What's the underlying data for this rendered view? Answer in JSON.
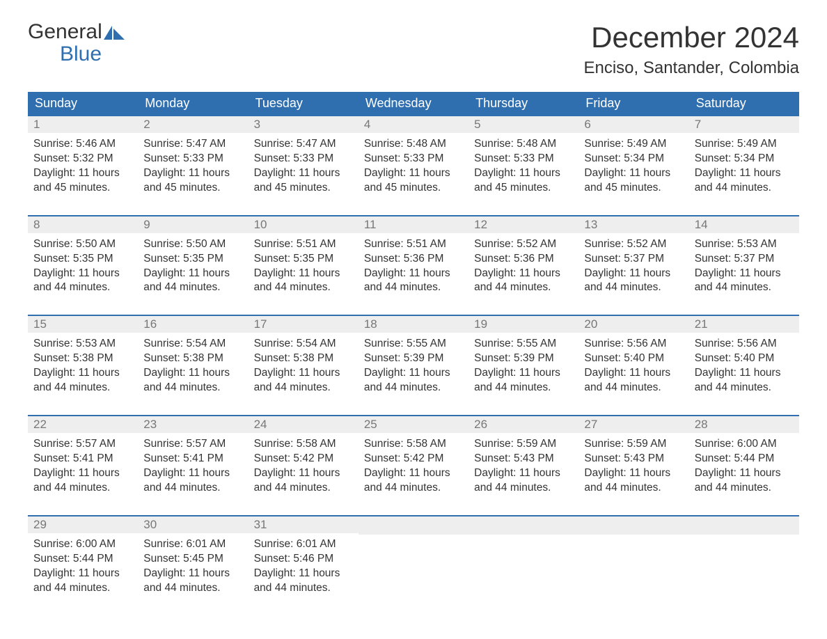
{
  "logo": {
    "line1": "General",
    "line2": "Blue"
  },
  "title": "December 2024",
  "location": "Enciso, Santander, Colombia",
  "colors": {
    "header_bg": "#2f6fb0",
    "header_text": "#ffffff",
    "strip_bg": "#eeeeee",
    "daynum_color": "#777777",
    "body_text": "#333333",
    "page_bg": "#ffffff",
    "border": "#2f6fb0",
    "logo_blue": "#2f6fb0"
  },
  "typography": {
    "title_fontsize": 42,
    "location_fontsize": 24,
    "weekday_fontsize": 18,
    "daynum_fontsize": 17,
    "content_fontsize": 15.5,
    "font_family": "Arial"
  },
  "layout": {
    "columns": 7,
    "rows": 5,
    "cell_border_top": "2px solid #2f6fb0"
  },
  "weekdays": [
    "Sunday",
    "Monday",
    "Tuesday",
    "Wednesday",
    "Thursday",
    "Friday",
    "Saturday"
  ],
  "labels": {
    "sunrise": "Sunrise:",
    "sunset": "Sunset:",
    "daylight_prefix": "Daylight:",
    "daylight_suffix_a": "hours",
    "daylight_suffix_b": "and",
    "daylight_suffix_c": "minutes."
  },
  "days": [
    {
      "n": 1,
      "sunrise": "5:46 AM",
      "sunset": "5:32 PM",
      "hours": 11,
      "minutes": 45
    },
    {
      "n": 2,
      "sunrise": "5:47 AM",
      "sunset": "5:33 PM",
      "hours": 11,
      "minutes": 45
    },
    {
      "n": 3,
      "sunrise": "5:47 AM",
      "sunset": "5:33 PM",
      "hours": 11,
      "minutes": 45
    },
    {
      "n": 4,
      "sunrise": "5:48 AM",
      "sunset": "5:33 PM",
      "hours": 11,
      "minutes": 45
    },
    {
      "n": 5,
      "sunrise": "5:48 AM",
      "sunset": "5:33 PM",
      "hours": 11,
      "minutes": 45
    },
    {
      "n": 6,
      "sunrise": "5:49 AM",
      "sunset": "5:34 PM",
      "hours": 11,
      "minutes": 45
    },
    {
      "n": 7,
      "sunrise": "5:49 AM",
      "sunset": "5:34 PM",
      "hours": 11,
      "minutes": 44
    },
    {
      "n": 8,
      "sunrise": "5:50 AM",
      "sunset": "5:35 PM",
      "hours": 11,
      "minutes": 44
    },
    {
      "n": 9,
      "sunrise": "5:50 AM",
      "sunset": "5:35 PM",
      "hours": 11,
      "minutes": 44
    },
    {
      "n": 10,
      "sunrise": "5:51 AM",
      "sunset": "5:35 PM",
      "hours": 11,
      "minutes": 44
    },
    {
      "n": 11,
      "sunrise": "5:51 AM",
      "sunset": "5:36 PM",
      "hours": 11,
      "minutes": 44
    },
    {
      "n": 12,
      "sunrise": "5:52 AM",
      "sunset": "5:36 PM",
      "hours": 11,
      "minutes": 44
    },
    {
      "n": 13,
      "sunrise": "5:52 AM",
      "sunset": "5:37 PM",
      "hours": 11,
      "minutes": 44
    },
    {
      "n": 14,
      "sunrise": "5:53 AM",
      "sunset": "5:37 PM",
      "hours": 11,
      "minutes": 44
    },
    {
      "n": 15,
      "sunrise": "5:53 AM",
      "sunset": "5:38 PM",
      "hours": 11,
      "minutes": 44
    },
    {
      "n": 16,
      "sunrise": "5:54 AM",
      "sunset": "5:38 PM",
      "hours": 11,
      "minutes": 44
    },
    {
      "n": 17,
      "sunrise": "5:54 AM",
      "sunset": "5:38 PM",
      "hours": 11,
      "minutes": 44
    },
    {
      "n": 18,
      "sunrise": "5:55 AM",
      "sunset": "5:39 PM",
      "hours": 11,
      "minutes": 44
    },
    {
      "n": 19,
      "sunrise": "5:55 AM",
      "sunset": "5:39 PM",
      "hours": 11,
      "minutes": 44
    },
    {
      "n": 20,
      "sunrise": "5:56 AM",
      "sunset": "5:40 PM",
      "hours": 11,
      "minutes": 44
    },
    {
      "n": 21,
      "sunrise": "5:56 AM",
      "sunset": "5:40 PM",
      "hours": 11,
      "minutes": 44
    },
    {
      "n": 22,
      "sunrise": "5:57 AM",
      "sunset": "5:41 PM",
      "hours": 11,
      "minutes": 44
    },
    {
      "n": 23,
      "sunrise": "5:57 AM",
      "sunset": "5:41 PM",
      "hours": 11,
      "minutes": 44
    },
    {
      "n": 24,
      "sunrise": "5:58 AM",
      "sunset": "5:42 PM",
      "hours": 11,
      "minutes": 44
    },
    {
      "n": 25,
      "sunrise": "5:58 AM",
      "sunset": "5:42 PM",
      "hours": 11,
      "minutes": 44
    },
    {
      "n": 26,
      "sunrise": "5:59 AM",
      "sunset": "5:43 PM",
      "hours": 11,
      "minutes": 44
    },
    {
      "n": 27,
      "sunrise": "5:59 AM",
      "sunset": "5:43 PM",
      "hours": 11,
      "minutes": 44
    },
    {
      "n": 28,
      "sunrise": "6:00 AM",
      "sunset": "5:44 PM",
      "hours": 11,
      "minutes": 44
    },
    {
      "n": 29,
      "sunrise": "6:00 AM",
      "sunset": "5:44 PM",
      "hours": 11,
      "minutes": 44
    },
    {
      "n": 30,
      "sunrise": "6:01 AM",
      "sunset": "5:45 PM",
      "hours": 11,
      "minutes": 44
    },
    {
      "n": 31,
      "sunrise": "6:01 AM",
      "sunset": "5:46 PM",
      "hours": 11,
      "minutes": 44
    }
  ]
}
